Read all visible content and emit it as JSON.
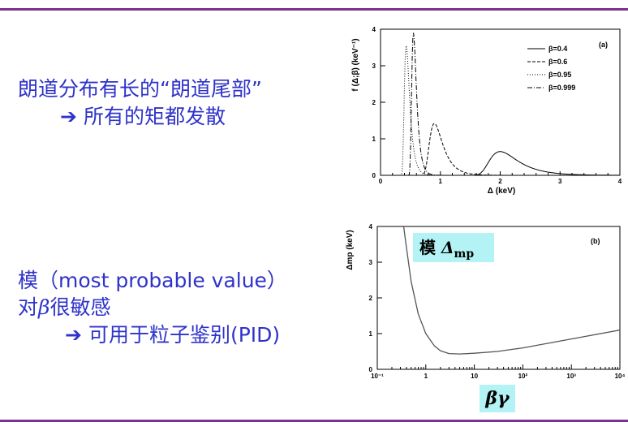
{
  "text": {
    "line1": "朗道分布有长的“朗道尾部”",
    "line2_arrow": "➔",
    "line2": "所有的矩都发散",
    "line3": "模（most probable value）",
    "line4_pre": "对",
    "line4_beta": "β",
    "line4_post": "很敏感",
    "line5_arrow": "➔",
    "line5": "可用于粒子鉴别(PID)"
  },
  "highlight": {
    "mode_label": "模",
    "mode_symbol": "Δ",
    "mode_sub": "mp",
    "betagamma": "βγ"
  },
  "colors": {
    "text": "#2f33c9",
    "rule": "#7b2f8e",
    "highlight": "#b3f3f5"
  },
  "chart_data": [
    {
      "type": "line",
      "panel": "(a)",
      "xlabel": "Δ (keV)",
      "ylabel": "f (Δ;β) (keV⁻¹)",
      "xlim": [
        0,
        4
      ],
      "ylim": [
        0,
        4
      ],
      "xticks": [
        "0",
        "1",
        "2",
        "3",
        "4"
      ],
      "yticks": [
        "0",
        "1",
        "2",
        "3",
        "4"
      ],
      "legend_position": "top-right",
      "series": [
        {
          "name": "β=0.4",
          "style": "solid",
          "mode": 2.0,
          "peak": 0.65,
          "width": 0.16
        },
        {
          "name": "β=0.6",
          "style": "dashed",
          "mode": 0.9,
          "peak": 1.42,
          "width": 0.075
        },
        {
          "name": "β=0.95",
          "style": "dotted",
          "mode": 0.43,
          "peak": 3.55,
          "width": 0.03
        },
        {
          "name": "β=0.999",
          "style": "dashdot",
          "mode": 0.55,
          "peak": 3.9,
          "width": 0.027
        }
      ]
    },
    {
      "type": "line",
      "panel": "(b)",
      "xlabel": "",
      "ylabel": "Δmp (keV)",
      "xscale": "log",
      "xlim": [
        0.1,
        10000
      ],
      "ylim": [
        0,
        4
      ],
      "xticks": [
        "10⁻¹",
        "1",
        "10",
        "10²",
        "10³",
        "10⁴"
      ],
      "yticks": [
        "0",
        "1",
        "2",
        "3",
        "4"
      ],
      "series": [
        {
          "name": "",
          "x": [
            0.35,
            0.4,
            0.5,
            0.7,
            1,
            1.5,
            2,
            3,
            5,
            10,
            30,
            100,
            1000,
            10000
          ],
          "y": [
            4.0,
            3.4,
            2.45,
            1.55,
            1.0,
            0.66,
            0.52,
            0.44,
            0.43,
            0.45,
            0.5,
            0.6,
            0.85,
            1.1
          ]
        }
      ]
    }
  ]
}
